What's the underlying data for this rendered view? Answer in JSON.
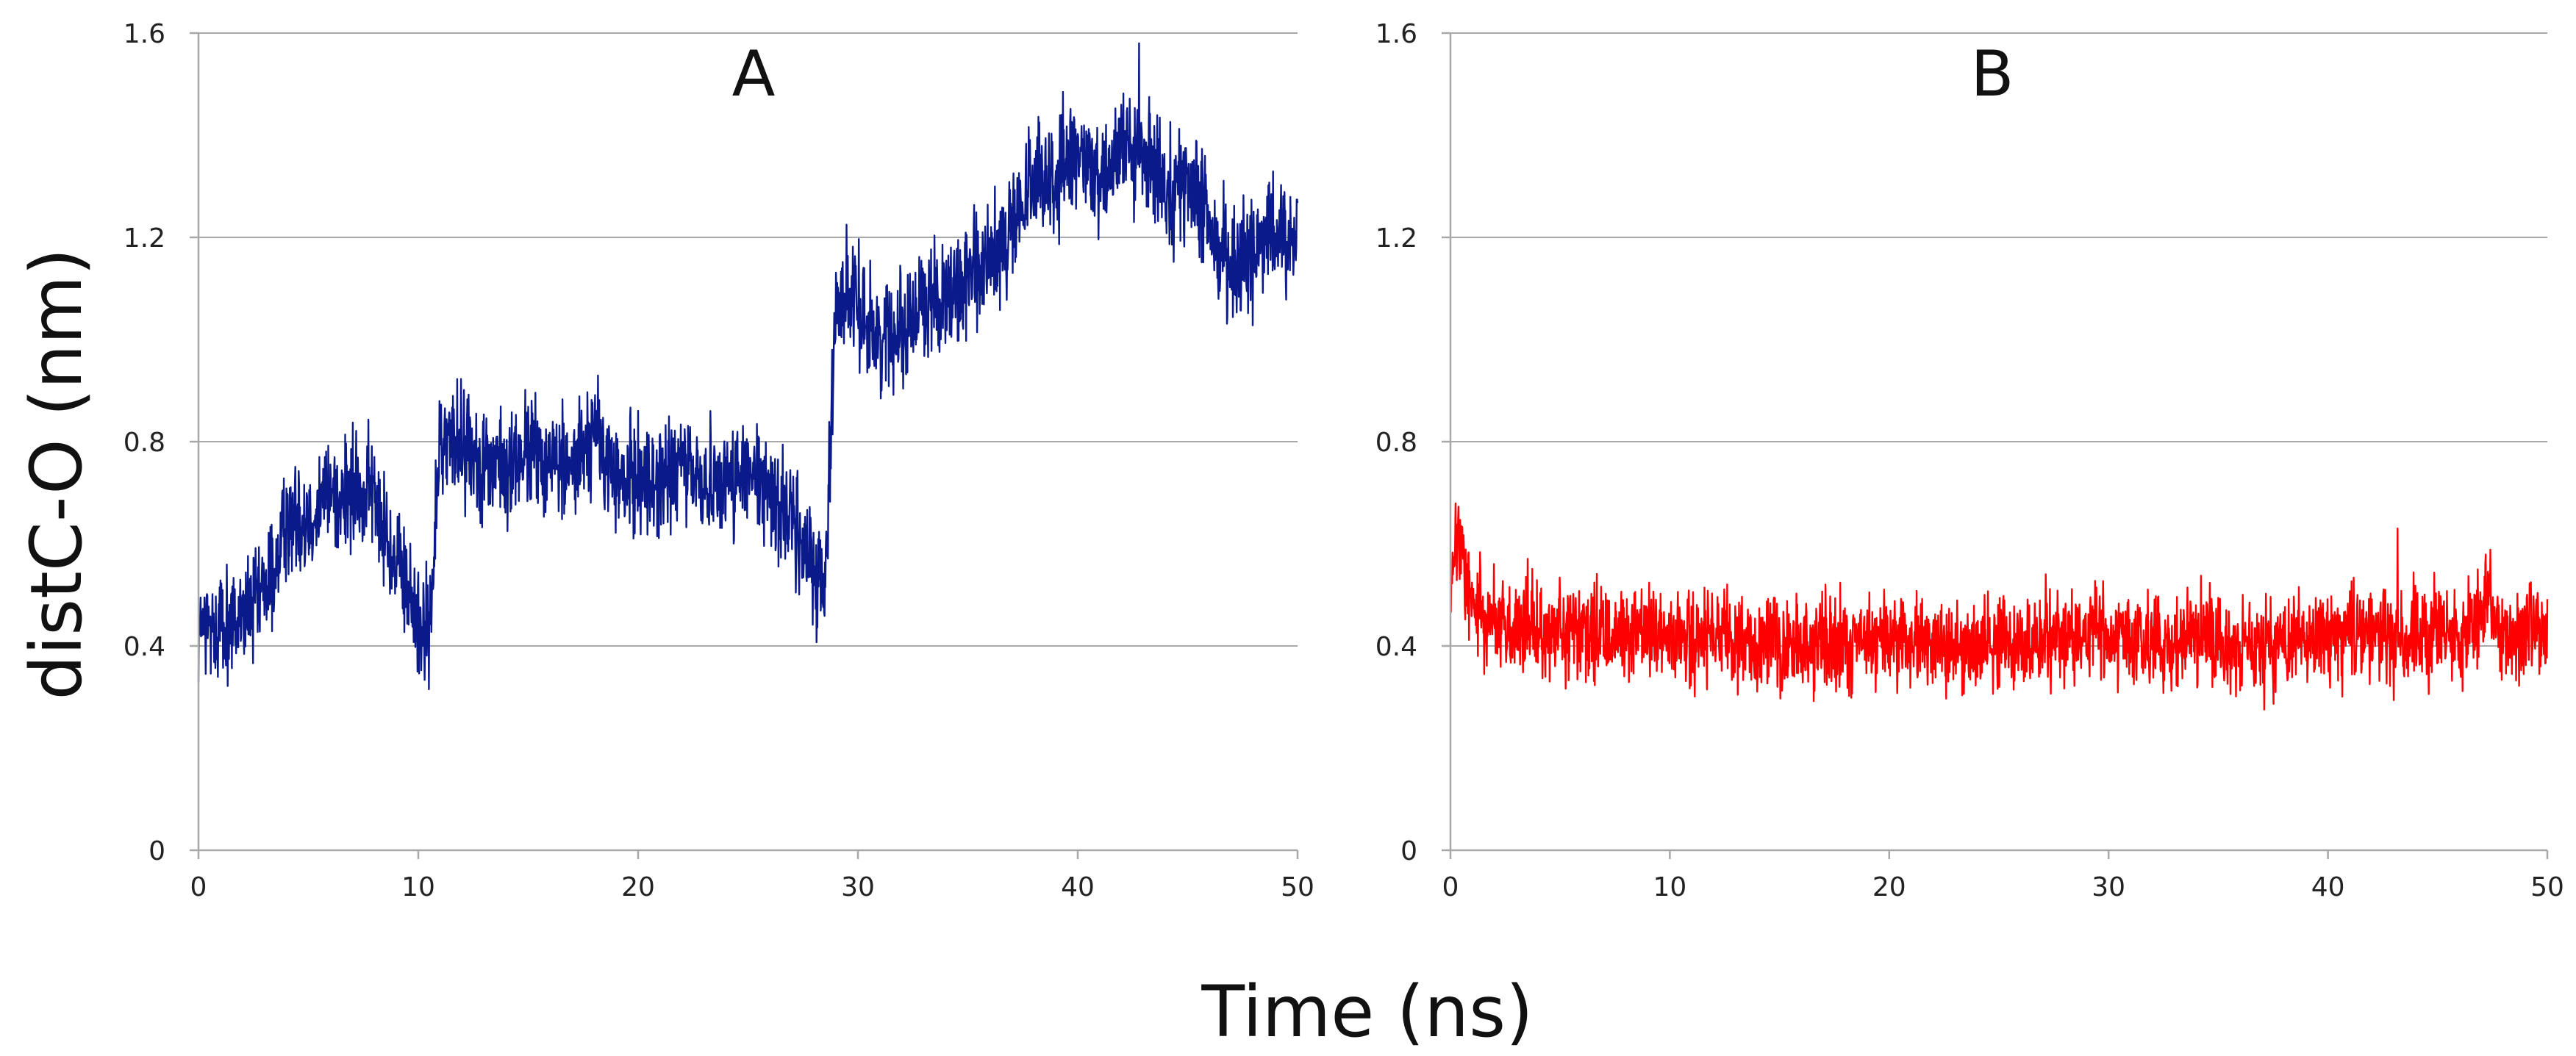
{
  "colors": {
    "panel_a": "#0a1a8a",
    "panel_b": "#ff0000",
    "grid": "#a8a8a8"
  },
  "shared": {
    "ylabel": "distC-O (nm)",
    "xlabel": "Time (ns)"
  },
  "chart_data": [
    {
      "type": "line",
      "title": "A",
      "xlim": [
        0,
        50
      ],
      "ylim": [
        0,
        1.6
      ],
      "x_ticks": [
        "0",
        "10",
        "20",
        "30",
        "40",
        "50"
      ],
      "y_ticks": [
        "0",
        "0.4",
        "0.8",
        "1.2",
        "1.6"
      ],
      "series": [
        {
          "color": "#0a1a8a",
          "x": [
            0,
            1,
            2,
            3,
            3.5,
            4,
            5,
            6,
            7,
            8,
            9,
            10,
            10.5,
            11,
            12,
            13,
            14,
            15,
            16,
            17,
            18,
            19,
            20,
            21,
            22,
            23,
            24,
            25,
            26,
            27,
            28,
            28.5,
            29,
            30,
            31,
            32,
            33,
            34,
            35,
            36,
            37,
            38,
            39,
            40,
            41,
            42,
            43,
            44,
            45,
            46,
            47,
            48,
            49,
            50
          ],
          "y": [
            0.43,
            0.44,
            0.45,
            0.5,
            0.56,
            0.64,
            0.66,
            0.7,
            0.69,
            0.7,
            0.55,
            0.46,
            0.42,
            0.8,
            0.8,
            0.76,
            0.74,
            0.78,
            0.76,
            0.75,
            0.82,
            0.72,
            0.73,
            0.72,
            0.75,
            0.72,
            0.73,
            0.73,
            0.7,
            0.65,
            0.55,
            0.5,
            1.09,
            1.07,
            1.0,
            1.03,
            1.06,
            1.1,
            1.1,
            1.15,
            1.22,
            1.3,
            1.32,
            1.35,
            1.33,
            1.37,
            1.35,
            1.31,
            1.3,
            1.22,
            1.15,
            1.17,
            1.2,
            1.2
          ],
          "noise": 0.055
        }
      ]
    },
    {
      "type": "line",
      "title": "B",
      "xlim": [
        0,
        50
      ],
      "ylim": [
        0,
        1.6
      ],
      "x_ticks": [
        "0",
        "10",
        "20",
        "30",
        "40",
        "50"
      ],
      "y_ticks": [
        "0",
        "0.4",
        "0.8",
        "1.2",
        "1.6"
      ],
      "series": [
        {
          "color": "#ff0000",
          "x": [
            0,
            0.3,
            1,
            2,
            3,
            5,
            7,
            8,
            10,
            12,
            15,
            18,
            20,
            22,
            25,
            28,
            29.3,
            30,
            32,
            34.5,
            36,
            38,
            40,
            42,
            44,
            46,
            47.2,
            48,
            50
          ],
          "y": [
            0.48,
            0.62,
            0.48,
            0.45,
            0.43,
            0.42,
            0.42,
            0.43,
            0.41,
            0.41,
            0.4,
            0.41,
            0.41,
            0.41,
            0.4,
            0.41,
            0.44,
            0.41,
            0.41,
            0.42,
            0.4,
            0.4,
            0.42,
            0.42,
            0.41,
            0.42,
            0.48,
            0.42,
            0.43
          ],
          "noise": 0.045
        }
      ]
    }
  ]
}
